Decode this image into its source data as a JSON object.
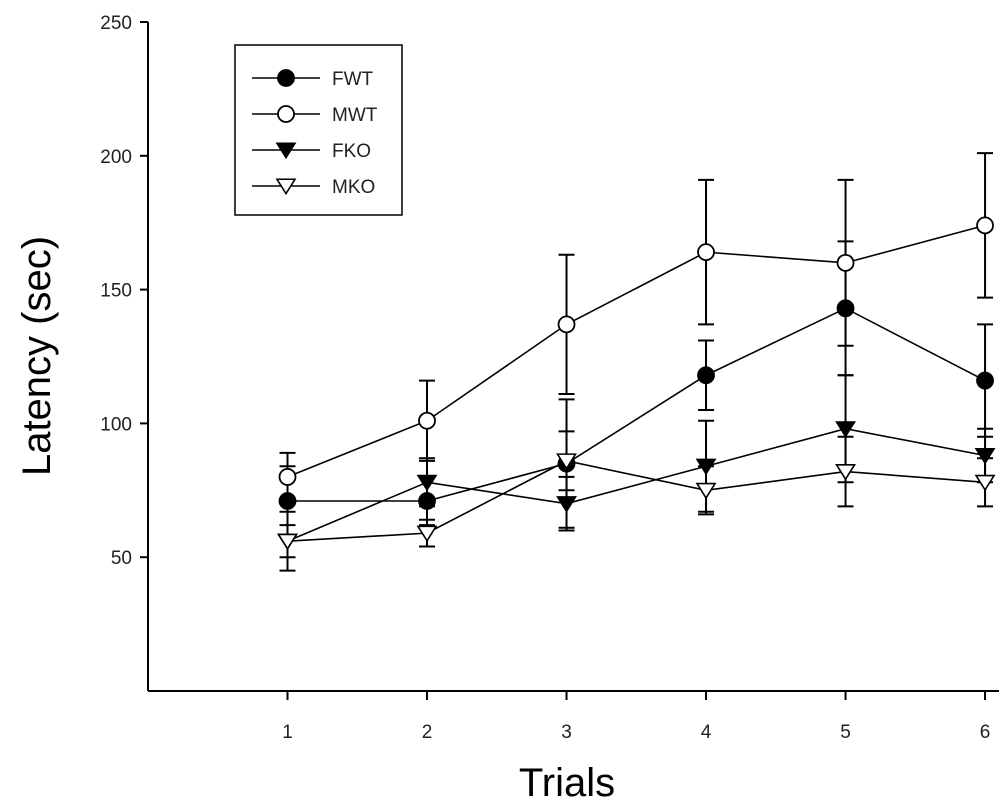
{
  "chart_data": {
    "type": "line",
    "title": "",
    "xlabel": "Trials",
    "ylabel": "Latency (sec)",
    "x": [
      1,
      2,
      3,
      4,
      5,
      6
    ],
    "x_ticks": [
      "1",
      "2",
      "3",
      "4",
      "5",
      "6"
    ],
    "xlim": [
      0.0,
      6.1
    ],
    "ylim": [
      0,
      250
    ],
    "y_ticks": [
      50,
      100,
      150,
      200,
      250
    ],
    "grid": false,
    "legend_position": "top-left",
    "series": [
      {
        "name": "FWT",
        "marker": "circle-filled",
        "values": [
          71,
          71,
          85,
          118,
          143,
          116
        ],
        "errors": [
          13,
          9,
          24,
          13,
          25,
          21
        ]
      },
      {
        "name": "MWT",
        "marker": "circle-open",
        "values": [
          80,
          101,
          137,
          164,
          160,
          174
        ],
        "errors": [
          9,
          15,
          26,
          27,
          31,
          27
        ]
      },
      {
        "name": "FKO",
        "marker": "triangle-down-filled",
        "values": [
          56,
          78,
          70,
          84,
          98,
          88
        ],
        "errors": [
          11,
          9,
          10,
          17,
          20,
          10
        ]
      },
      {
        "name": "MKO",
        "marker": "triangle-down-open",
        "values": [
          56,
          59,
          86,
          75,
          82,
          78
        ],
        "errors": [
          6,
          5,
          11,
          9,
          13,
          9
        ]
      }
    ]
  }
}
